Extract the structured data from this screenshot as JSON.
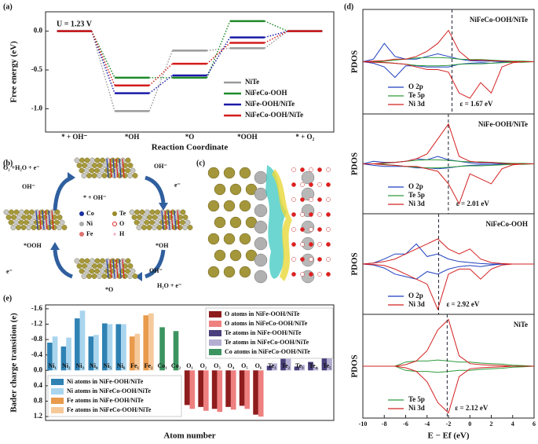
{
  "panel_labels": [
    "(a)",
    "(b)",
    "(c)",
    "(d)",
    "(e)"
  ],
  "scheme": {
    "texts": [
      "O₂ +H₂O + e⁻",
      "OH⁻",
      "* + OH⁻",
      "OH⁻",
      "e⁻",
      "*OH",
      "OH⁻",
      "H₂O + e⁻",
      "*O",
      "e⁻",
      "*OOH"
    ],
    "legend": [
      "Co",
      "Te",
      "Ni",
      "O",
      "Fe",
      "H"
    ]
  },
  "chart_data": [
    {
      "type": "step",
      "annotation": "U = 1.23 V",
      "xlabel": "Reaction Coordinate",
      "ylabel": "Free energy (eV)",
      "categories": [
        "* + OH⁻",
        "*OH",
        "*O",
        "*OOH",
        "* + O₂"
      ],
      "ylim": [
        -1.3,
        0.25
      ],
      "yticks": [
        {
          "value": 0,
          "label": "0.0"
        },
        -0.5,
        {
          "value": -1,
          "label": "-1.0"
        }
      ],
      "series": [
        {
          "name": "NiTe",
          "color": "#9a9a9a",
          "values": [
            0,
            -1.03,
            -0.25,
            -0.22,
            0
          ]
        },
        {
          "name": "NiFeCo-OOH",
          "color": "#1f8a2a",
          "values": [
            0,
            -0.6,
            -0.6,
            0.13,
            0
          ]
        },
        {
          "name": "NiFe-OOH/NiTe",
          "color": "#1a1aa8",
          "values": [
            0,
            -0.8,
            -0.57,
            -0.08,
            0
          ]
        },
        {
          "name": "NiFeCo-OOH/NiTe",
          "color": "#d41c1c",
          "values": [
            0,
            -0.7,
            -0.42,
            -0.15,
            0
          ]
        }
      ]
    },
    {
      "type": "bar",
      "ylabel": "Bader charge transition (e)",
      "xlabel": "Atom number",
      "invert_y": true,
      "categories": [
        "Ni₁",
        "Ni₂",
        "Ni₃",
        "Ni₄",
        "Ni₅",
        "Ni₆",
        "Fe₁",
        "Fe₂",
        "Co₁",
        "Co₂",
        "O₁",
        "O₂",
        "O₃",
        "O₄",
        "O₅",
        "O₆",
        "Te₁",
        "Te₂",
        "Te₃",
        "Te₄",
        "Te₅"
      ],
      "ylim": [
        -1.7,
        1.3
      ],
      "yticks": [
        -1.6,
        -1.2,
        -0.8,
        -0.4,
        {
          "value": 0,
          "label": "0.0"
        },
        0.4,
        0.8,
        1.2
      ],
      "series": [
        {
          "name": "O atoms in NiFe-OOH/NiTe",
          "color": "#8e1d1d",
          "values": [
            null,
            null,
            null,
            null,
            null,
            null,
            null,
            null,
            null,
            null,
            0.9,
            0.95,
            1.0,
            0.95,
            0.92,
            1.15,
            null,
            null,
            null,
            null,
            null
          ]
        },
        {
          "name": "O atoms in NiFeCo-OOH/NiTe",
          "color": "#ee8080",
          "values": [
            null,
            null,
            null,
            null,
            null,
            null,
            null,
            null,
            null,
            null,
            1.0,
            1.05,
            1.08,
            1.02,
            1.0,
            1.2,
            null,
            null,
            null,
            null,
            null
          ]
        },
        {
          "name": "Te atoms in NiFe-OOH/NiTe",
          "color": "#4a3f7c",
          "values": [
            null,
            null,
            null,
            null,
            null,
            null,
            null,
            null,
            null,
            null,
            null,
            null,
            null,
            null,
            null,
            null,
            -0.12,
            -0.3,
            -0.1,
            -0.22,
            -0.35
          ]
        },
        {
          "name": "Te atoms in NiFeCo-OOH/NiTe",
          "color": "#b3aed2",
          "values": [
            null,
            null,
            null,
            null,
            null,
            null,
            null,
            null,
            null,
            null,
            null,
            null,
            null,
            null,
            null,
            null,
            -0.18,
            -0.3,
            -0.14,
            -0.08,
            -0.35
          ]
        },
        {
          "name": "Co atoms in NiFeCo-OOH/NiTe",
          "color": "#3c9460",
          "values": [
            null,
            null,
            null,
            null,
            null,
            null,
            null,
            null,
            -1.12,
            -1.02,
            null,
            null,
            null,
            null,
            null,
            null,
            null,
            null,
            null,
            null,
            null
          ]
        },
        {
          "name": "Ni atoms in NiFe-OOH/NiTe",
          "color": "#2f82b4",
          "values": [
            -0.72,
            -0.62,
            -1.35,
            -0.88,
            -1.22,
            -1.2,
            null,
            null,
            null,
            null,
            null,
            null,
            null,
            null,
            null,
            null,
            null,
            null,
            null,
            null,
            null
          ]
        },
        {
          "name": "Ni atoms in NiFeCo-OOH/NiTe",
          "color": "#a9d5ee",
          "values": [
            -0.88,
            -0.85,
            -1.55,
            -0.92,
            -1.2,
            -1.2,
            null,
            null,
            null,
            null,
            null,
            null,
            null,
            null,
            null,
            null,
            null,
            null,
            null,
            null,
            null
          ]
        },
        {
          "name": "Fe atoms in NiFe-OOH/NiTe",
          "color": "#e99a4c",
          "values": [
            null,
            null,
            null,
            null,
            null,
            null,
            -0.88,
            -1.43,
            null,
            null,
            null,
            null,
            null,
            null,
            null,
            null,
            null,
            null,
            null,
            null,
            null
          ]
        },
        {
          "name": "Fe atoms in NiFeCo-OOH/NiTe",
          "color": "#f6c99b",
          "values": [
            null,
            null,
            null,
            null,
            null,
            null,
            -0.95,
            -1.48,
            null,
            null,
            null,
            null,
            null,
            null,
            null,
            null,
            null,
            null,
            null,
            null,
            null
          ]
        }
      ]
    },
    {
      "type": "pdos",
      "title": "NiFeCo-OOH/NiTe",
      "ylabel": "PDOS",
      "x": [
        -10,
        -9,
        -8,
        -7,
        -6,
        -5,
        -4,
        -3,
        -2,
        -1,
        0,
        1,
        2,
        3,
        4,
        5,
        6
      ],
      "xlim": [
        -10,
        6
      ],
      "ylim": [
        -10,
        10
      ],
      "dband_center": -1.67,
      "dband_label": "ε = 1.67 eV",
      "series": [
        {
          "name": "O 2p",
          "color": "#1f3fbf",
          "values": [
            0,
            0.5,
            3.5,
            1,
            0.5,
            0.5,
            1,
            1.5,
            1,
            0.5,
            0.2,
            0.1,
            0.1,
            0,
            0,
            0,
            0
          ],
          "values_down": [
            0,
            -0.3,
            -1,
            -3,
            -0.8,
            -0.8,
            -1,
            -1,
            -1,
            -0.5,
            -0.3,
            -0.2,
            -0.3,
            -0.1,
            0,
            0,
            0
          ]
        },
        {
          "name": "Te 5p",
          "color": "#2e9b3a",
          "values": [
            0,
            0,
            0.1,
            0.3,
            0.5,
            0.7,
            0.8,
            0.8,
            0.7,
            0.5,
            0.4,
            0.4,
            0.3,
            0.2,
            0.1,
            0.1,
            0
          ],
          "values_down": [
            0,
            0,
            -0.1,
            -0.3,
            -0.5,
            -0.7,
            -0.8,
            -0.8,
            -0.7,
            -0.5,
            -0.4,
            -0.4,
            -0.3,
            -0.2,
            -0.1,
            -0.1,
            0
          ]
        },
        {
          "name": "Ni 3d",
          "color": "#d42020",
          "values": [
            0,
            0.1,
            0.2,
            0.5,
            0.5,
            1,
            2,
            3.5,
            6,
            2,
            0.3,
            0.3,
            0.2,
            0.1,
            0,
            0,
            0
          ],
          "values_down": [
            0,
            -0.1,
            -0.2,
            -0.3,
            -0.5,
            -1,
            -1.5,
            -1.5,
            -2,
            -6,
            -7,
            -4,
            -6,
            -1,
            -0.2,
            0,
            0
          ]
        }
      ]
    },
    {
      "type": "pdos",
      "title": "NiFe-OOH/NiTe",
      "ylabel": "PDOS",
      "x": [
        -10,
        -9,
        -8,
        -7,
        -6,
        -5,
        -4,
        -3,
        -2,
        -1,
        0,
        1,
        2,
        3,
        4,
        5,
        6
      ],
      "xlim": [
        -10,
        6
      ],
      "ylim": [
        -10,
        10
      ],
      "dband_center": -2.01,
      "dband_label": "ε = 2.01 eV",
      "series": [
        {
          "name": "O 2p",
          "color": "#1f3fbf",
          "values": [
            0,
            0.5,
            0.3,
            0.3,
            0.5,
            1,
            0.8,
            1.5,
            0.8,
            0.5,
            0.2,
            0.1,
            0.1,
            0,
            0,
            0,
            0
          ],
          "values_down": [
            0,
            -0.3,
            -0.5,
            -0.5,
            -0.5,
            -0.8,
            -0.8,
            -1,
            -0.8,
            -0.5,
            -0.3,
            -0.2,
            -0.2,
            -0.1,
            0,
            0,
            0
          ]
        },
        {
          "name": "Te 5p",
          "color": "#2e9b3a",
          "values": [
            0,
            0,
            0.1,
            0.3,
            0.5,
            0.7,
            0.8,
            0.8,
            0.7,
            0.5,
            0.4,
            0.4,
            0.3,
            0.2,
            0.1,
            0.1,
            0
          ],
          "values_down": [
            0,
            0,
            -0.1,
            -0.3,
            -0.5,
            -0.7,
            -0.8,
            -0.8,
            -0.7,
            -0.5,
            -0.4,
            -0.4,
            -0.3,
            -0.2,
            -0.1,
            -0.1,
            0
          ]
        },
        {
          "name": "Ni 3d",
          "color": "#d42020",
          "values": [
            0,
            0,
            0.2,
            0.3,
            0.5,
            1,
            2,
            5,
            8,
            1.5,
            0.5,
            0.3,
            0.3,
            0.1,
            0,
            0,
            0
          ],
          "values_down": [
            0,
            0,
            -0.2,
            -0.3,
            -0.5,
            -0.5,
            -1,
            -1.5,
            -4,
            -8,
            -2,
            -3,
            -4,
            -1,
            -0.2,
            0,
            0
          ]
        }
      ]
    },
    {
      "type": "pdos",
      "title": "NiFeCo-OOH",
      "ylabel": "PDOS",
      "x": [
        -10,
        -9,
        -8,
        -7,
        -6,
        -5,
        -4,
        -3,
        -2,
        -1,
        0,
        1,
        2,
        3,
        4,
        5,
        6
      ],
      "xlim": [
        -10,
        6
      ],
      "ylim": [
        -10,
        10
      ],
      "dband_center": -2.92,
      "dband_label": "ε = 2.92 eV",
      "series": [
        {
          "name": "O 2p",
          "color": "#1f3fbf",
          "values": [
            0,
            0.2,
            1,
            2,
            2,
            4,
            1.5,
            2,
            1,
            0.5,
            0.3,
            0.1,
            0,
            0,
            0,
            0,
            0
          ],
          "values_down": [
            0,
            -0.2,
            -0.8,
            -2,
            -2.5,
            -3,
            -1.5,
            -2,
            -1,
            -0.5,
            -0.3,
            -0.5,
            -0.2,
            0,
            0,
            0,
            0
          ]
        },
        {
          "name": "Ni 3d",
          "color": "#d42020",
          "values": [
            0,
            0.2,
            0.5,
            1,
            2,
            3,
            4,
            5,
            3,
            2,
            3,
            1,
            0.3,
            0.1,
            0,
            0,
            0
          ],
          "values_down": [
            0,
            -0.1,
            -0.3,
            -1,
            -2,
            -3,
            -4,
            -9,
            -2,
            -1,
            -1,
            -3,
            -1,
            -0.2,
            0,
            0,
            0
          ]
        }
      ]
    },
    {
      "type": "pdos",
      "title": "NiTe",
      "ylabel": "PDOS",
      "xlabel": "E − Ef (eV)",
      "x": [
        -10,
        -9,
        -8,
        -7,
        -6,
        -5,
        -4,
        -3,
        -2,
        -1,
        0,
        1,
        2,
        3,
        4,
        5,
        6
      ],
      "xlim": [
        -10,
        6
      ],
      "ylim": [
        -10,
        10
      ],
      "xticks": [
        -10,
        -8,
        -6,
        -4,
        -2,
        0,
        2,
        4,
        6
      ],
      "dband_center": -2.12,
      "dband_label": "ε = 2.12 eV",
      "series": [
        {
          "name": "Te 5p",
          "color": "#2e9b3a",
          "values": [
            0,
            0,
            0,
            0,
            0.8,
            1,
            1,
            1.2,
            1,
            0.8,
            0.8,
            0.6,
            0.5,
            0.4,
            0.2,
            0.1,
            0
          ],
          "values_down": [
            0,
            0,
            0,
            0,
            -0.8,
            -1,
            -1,
            -1.2,
            -1,
            -0.8,
            -0.8,
            -0.6,
            -0.5,
            -0.4,
            -0.2,
            -0.1,
            0
          ]
        },
        {
          "name": "Ni 3d",
          "color": "#d42020",
          "values": [
            0,
            0,
            0,
            0,
            0.3,
            1,
            3,
            7,
            9,
            2,
            0.5,
            0.3,
            0.2,
            0.1,
            0,
            0,
            0
          ],
          "values_down": [
            0,
            0,
            0,
            0,
            -0.3,
            -1,
            -3,
            -7,
            -9,
            -2,
            -0.5,
            -0.3,
            -0.2,
            -0.1,
            0,
            0,
            0
          ]
        }
      ]
    }
  ]
}
